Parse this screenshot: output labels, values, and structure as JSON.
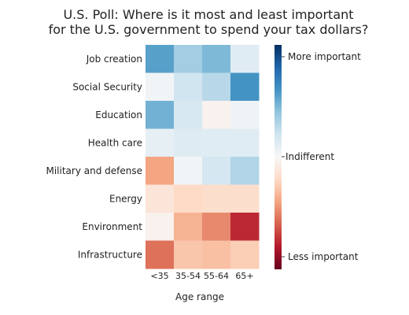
{
  "chart_data": {
    "type": "heatmap",
    "title": [
      "U.S. Poll: Where is it most and least important",
      "for the U.S. government to spend your tax dollars?"
    ],
    "xlabel": "Age range",
    "ylabel": "",
    "columns": [
      "<35",
      "35-54",
      "55-64",
      "65+"
    ],
    "rows": [
      "Job creation",
      "Social Security",
      "Education",
      "Health care",
      "Military and defense",
      "Energy",
      "Environment",
      "Infrastructure"
    ],
    "values": [
      [
        0.55,
        0.35,
        0.45,
        0.12
      ],
      [
        0.03,
        0.2,
        0.28,
        0.6
      ],
      [
        0.48,
        0.17,
        -0.04,
        0.04
      ],
      [
        0.09,
        0.13,
        0.12,
        0.12
      ],
      [
        -0.4,
        0.03,
        0.18,
        0.3
      ],
      [
        -0.13,
        -0.2,
        -0.18,
        -0.18
      ],
      [
        -0.04,
        -0.35,
        -0.48,
        -0.75
      ],
      [
        -0.55,
        -0.28,
        -0.3,
        -0.25
      ]
    ],
    "vmin": -1,
    "vmax": 1,
    "colormap": "RdBu",
    "colorbar": {
      "top_label": "More important",
      "mid_label": "Indifferent",
      "bottom_label": "Less important"
    }
  }
}
